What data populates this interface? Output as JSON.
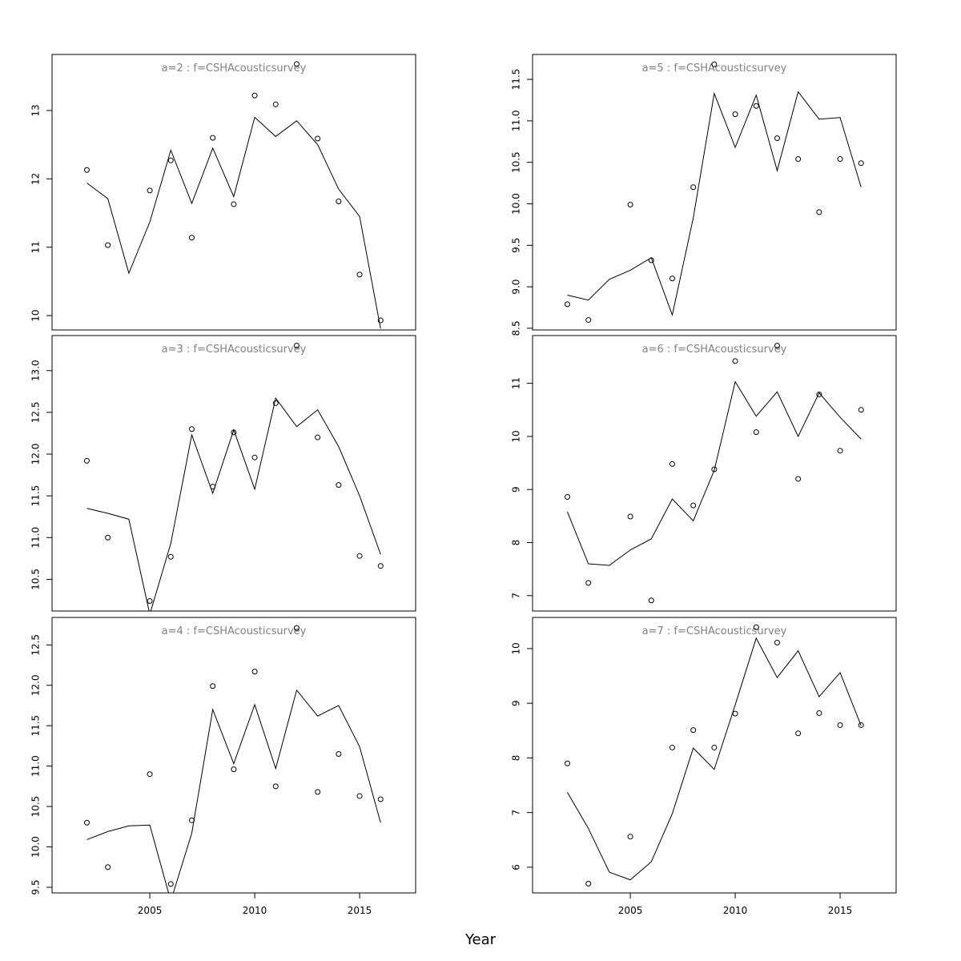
{
  "xlabel": "Year",
  "chart_data": [
    {
      "type": "line",
      "title": "a=2 : f=CSHAcousticsurvey",
      "x": [
        2002,
        2003,
        2004,
        2005,
        2006,
        2007,
        2008,
        2009,
        2010,
        2011,
        2012,
        2013,
        2014,
        2015,
        2016
      ],
      "xlim": [
        2000.34,
        2017.67
      ],
      "ylim": [
        9.79,
        13.82
      ],
      "yticks": [
        10,
        11,
        12,
        13
      ],
      "series": [
        {
          "style": "points",
          "color": "#000000",
          "values": [
            12.13,
            11.03,
            null,
            11.83,
            12.27,
            11.14,
            12.6,
            11.63,
            13.22,
            13.09,
            13.68,
            12.59,
            11.67,
            10.6,
            9.93
          ]
        },
        {
          "style": "line",
          "color": "#000000",
          "values": [
            11.94,
            11.71,
            10.62,
            11.37,
            12.42,
            11.64,
            12.45,
            11.74,
            12.9,
            12.62,
            12.85,
            12.5,
            11.85,
            11.45,
            9.81
          ]
        }
      ]
    },
    {
      "type": "line",
      "title": "a=5 : f=CSHAcousticsurvey",
      "x": [
        2002,
        2003,
        2004,
        2005,
        2006,
        2007,
        2008,
        2009,
        2010,
        2011,
        2012,
        2013,
        2014,
        2015,
        2016
      ],
      "xlim": [
        2000.34,
        2017.67
      ],
      "ylim": [
        8.48,
        11.8
      ],
      "yticks": [
        {
          "value": 8.5,
          "label": "8.5"
        },
        {
          "value": 9,
          "label": "9.0"
        },
        9.5,
        {
          "value": 10,
          "label": "10.0"
        },
        10.5,
        {
          "value": 11,
          "label": "11.0"
        },
        11.5
      ],
      "series": [
        {
          "style": "points",
          "color": "#000000",
          "values": [
            8.79,
            8.6,
            null,
            9.99,
            9.32,
            9.1,
            10.2,
            11.68,
            11.08,
            11.18,
            10.79,
            10.54,
            9.9,
            10.54,
            10.49
          ]
        },
        {
          "style": "line",
          "color": "#000000",
          "values": [
            8.9,
            8.84,
            9.09,
            9.2,
            9.35,
            8.66,
            9.83,
            11.33,
            10.68,
            11.31,
            10.4,
            11.35,
            11.02,
            11.04,
            10.2
          ]
        }
      ]
    },
    {
      "type": "line",
      "title": "a=3 : f=CSHAcousticsurvey",
      "x": [
        2002,
        2003,
        2004,
        2005,
        2006,
        2007,
        2008,
        2009,
        2010,
        2011,
        2012,
        2013,
        2014,
        2015,
        2016
      ],
      "xlim": [
        2000.34,
        2017.67
      ],
      "ylim": [
        10.12,
        13.42
      ],
      "yticks": [
        10.5,
        {
          "value": 11,
          "label": "11.0"
        },
        11.5,
        {
          "value": 12,
          "label": "12.0"
        },
        12.5,
        {
          "value": 13,
          "label": "13.0"
        }
      ],
      "series": [
        {
          "style": "points",
          "color": "#000000",
          "values": [
            11.92,
            11.0,
            null,
            10.24,
            10.77,
            12.3,
            11.61,
            12.26,
            11.96,
            12.61,
            13.3,
            12.2,
            11.63,
            10.78,
            10.66
          ]
        },
        {
          "style": "line",
          "color": "#000000",
          "values": [
            11.35,
            11.29,
            11.22,
            10.08,
            10.93,
            12.23,
            11.53,
            12.29,
            11.58,
            12.67,
            12.33,
            12.53,
            12.09,
            11.5,
            10.8
          ]
        }
      ]
    },
    {
      "type": "line",
      "title": "a=6 : f=CSHAcousticsurvey",
      "x": [
        2002,
        2003,
        2004,
        2005,
        2006,
        2007,
        2008,
        2009,
        2010,
        2011,
        2012,
        2013,
        2014,
        2015,
        2016
      ],
      "xlim": [
        2000.34,
        2017.67
      ],
      "ylim": [
        6.71,
        11.9
      ],
      "yticks": [
        7,
        8,
        9,
        10,
        11
      ],
      "series": [
        {
          "style": "points",
          "color": "#000000",
          "values": [
            8.86,
            7.24,
            null,
            8.49,
            6.91,
            9.48,
            8.7,
            9.38,
            11.42,
            10.08,
            11.71,
            9.2,
            10.79,
            9.73,
            10.5
          ]
        },
        {
          "style": "line",
          "color": "#000000",
          "values": [
            8.58,
            7.6,
            7.57,
            7.86,
            8.07,
            8.82,
            8.41,
            9.36,
            11.03,
            10.38,
            10.84,
            10.0,
            10.82,
            10.36,
            9.95
          ]
        }
      ]
    },
    {
      "type": "line",
      "title": "a=4 : f=CSHAcousticsurvey",
      "x": [
        2002,
        2003,
        2004,
        2005,
        2006,
        2007,
        2008,
        2009,
        2010,
        2011,
        2012,
        2013,
        2014,
        2015,
        2016
      ],
      "xlim": [
        2000.34,
        2017.67
      ],
      "xticks": [
        2005,
        2010,
        2015
      ],
      "ylim": [
        9.43,
        12.84
      ],
      "yticks": [
        9.5,
        {
          "value": 10,
          "label": "10.0"
        },
        10.5,
        {
          "value": 11,
          "label": "11.0"
        },
        11.5,
        {
          "value": 12,
          "label": "12.0"
        },
        12.5
      ],
      "series": [
        {
          "style": "points",
          "color": "#000000",
          "values": [
            10.3,
            9.75,
            null,
            10.9,
            9.54,
            10.33,
            11.99,
            10.96,
            12.17,
            10.75,
            12.71,
            10.68,
            11.15,
            10.63,
            10.59
          ]
        },
        {
          "style": "line",
          "color": "#000000",
          "values": [
            10.09,
            10.19,
            10.26,
            10.27,
            9.33,
            10.17,
            11.7,
            11.03,
            11.76,
            10.97,
            11.94,
            11.62,
            11.75,
            11.24,
            10.3
          ]
        }
      ]
    },
    {
      "type": "line",
      "title": "a=7 : f=CSHAcousticsurvey",
      "x": [
        2002,
        2003,
        2004,
        2005,
        2006,
        2007,
        2008,
        2009,
        2010,
        2011,
        2012,
        2013,
        2014,
        2015,
        2016
      ],
      "xlim": [
        2000.34,
        2017.67
      ],
      "xticks": [
        2005,
        2010,
        2015
      ],
      "ylim": [
        5.53,
        10.57
      ],
      "yticks": [
        6,
        7,
        8,
        9,
        10
      ],
      "series": [
        {
          "style": "points",
          "color": "#000000",
          "values": [
            7.9,
            5.7,
            null,
            6.56,
            null,
            8.19,
            8.51,
            8.19,
            8.81,
            10.39,
            10.11,
            8.45,
            8.82,
            8.6,
            8.6
          ]
        },
        {
          "style": "line",
          "color": "#000000",
          "values": [
            7.37,
            6.71,
            5.91,
            5.77,
            6.1,
            6.98,
            8.18,
            7.79,
            8.97,
            10.19,
            9.47,
            9.96,
            9.12,
            9.56,
            8.59
          ]
        }
      ]
    }
  ]
}
